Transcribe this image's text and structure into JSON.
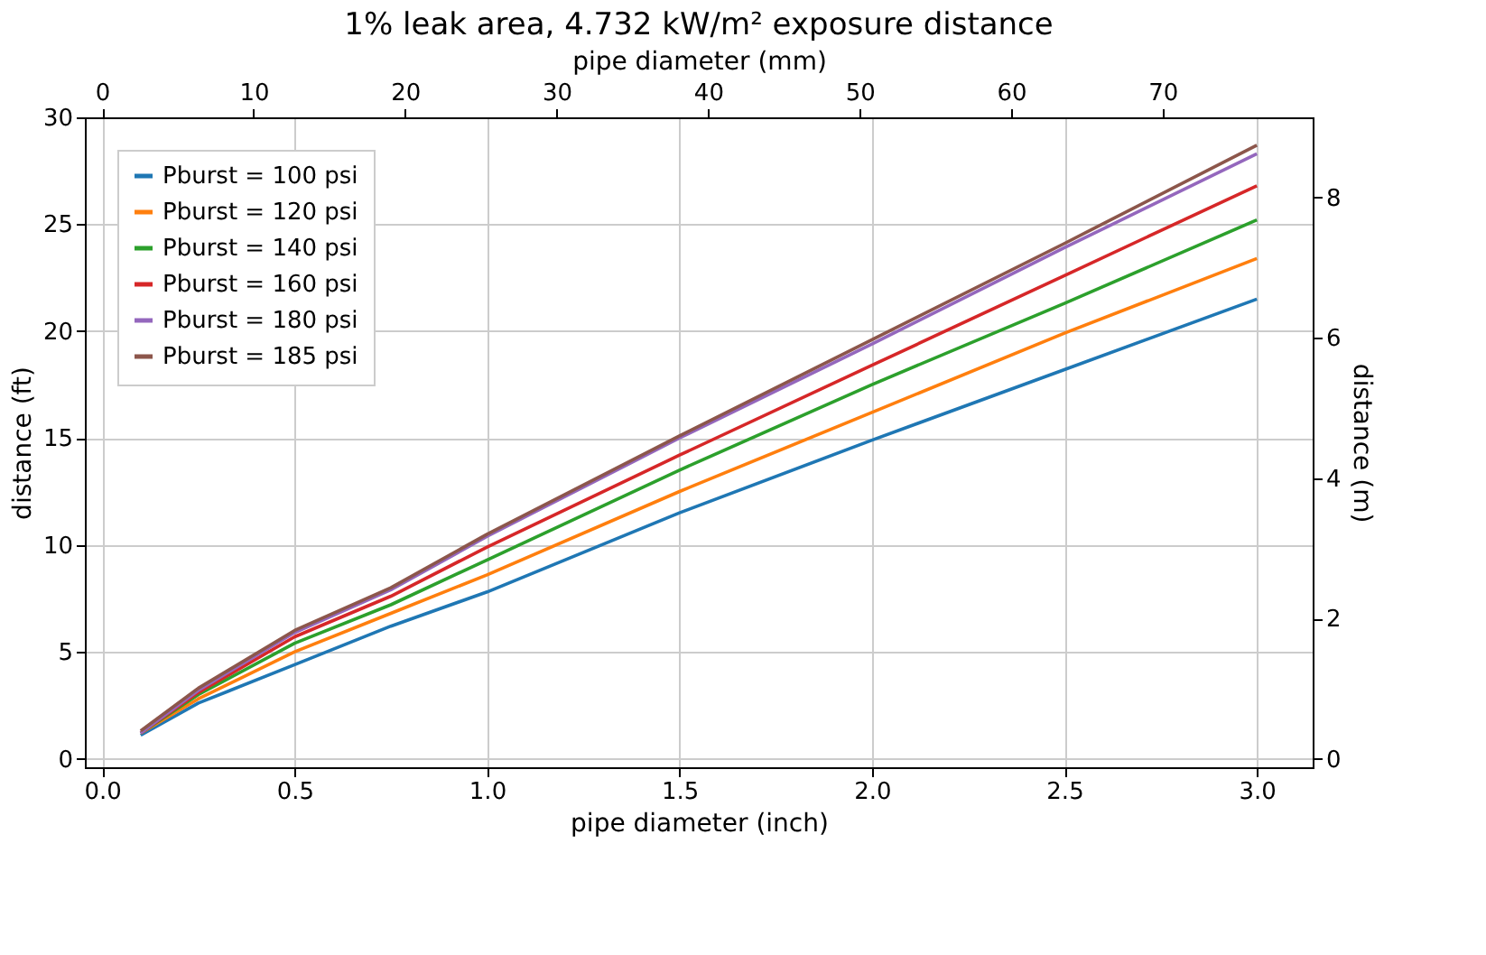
{
  "chart_data": {
    "type": "line",
    "title": "1% leak area, 4.732 kW/m² exposure distance",
    "xlabel": "pipe diameter (inch)",
    "ylabel": "distance (ft)",
    "y2label": "distance (m)",
    "x2label": "pipe diameter (mm)",
    "x": [
      0.1,
      0.25,
      0.5,
      0.75,
      1.0,
      1.5,
      2.0,
      2.5,
      3.0
    ],
    "xlim": [
      -0.045,
      3.145
    ],
    "xticks": [
      {
        "value": 0,
        "label": "0.0"
      },
      0.5,
      {
        "value": 1,
        "label": "1.0"
      },
      1.5,
      {
        "value": 2,
        "label": "2.0"
      },
      2.5,
      {
        "value": 3,
        "label": "3.0"
      }
    ],
    "ylim": [
      -0.4,
      30
    ],
    "yticks": [
      0,
      5,
      10,
      15,
      20,
      25,
      30
    ],
    "y2lim": [
      -0.12,
      9.14
    ],
    "y2ticks": [
      0,
      2,
      4,
      6,
      8
    ],
    "x2lim": [
      -1.14,
      79.9
    ],
    "x2ticks": [
      0,
      10,
      20,
      30,
      40,
      50,
      60,
      70
    ],
    "series": [
      {
        "name": "Pburst = 100 psi",
        "color": "#1f77b4",
        "values": [
          1.1,
          2.6,
          4.4,
          6.2,
          7.8,
          11.5,
          14.9,
          18.2,
          21.5
        ]
      },
      {
        "name": "Pburst = 120 psi",
        "color": "#ff7f0e",
        "values": [
          1.2,
          2.8,
          5.0,
          6.8,
          8.6,
          12.5,
          16.2,
          19.9,
          23.4
        ]
      },
      {
        "name": "Pburst = 140 psi",
        "color": "#2ca02c",
        "values": [
          1.2,
          3.0,
          5.4,
          7.2,
          9.3,
          13.5,
          17.5,
          21.3,
          25.2
        ]
      },
      {
        "name": "Pburst = 160 psi",
        "color": "#d62728",
        "values": [
          1.2,
          3.1,
          5.7,
          7.6,
          9.9,
          14.2,
          18.4,
          22.6,
          26.8
        ]
      },
      {
        "name": "Pburst = 180 psi",
        "color": "#9467bd",
        "values": [
          1.2,
          3.2,
          5.9,
          7.9,
          10.4,
          15.0,
          19.4,
          23.9,
          28.3
        ]
      },
      {
        "name": "Pburst = 185 psi",
        "color": "#8c564b",
        "values": [
          1.3,
          3.3,
          6.0,
          8.0,
          10.5,
          15.1,
          19.6,
          24.1,
          28.7
        ]
      }
    ],
    "grid": true,
    "legend": "top left",
    "line_style": "solid"
  }
}
